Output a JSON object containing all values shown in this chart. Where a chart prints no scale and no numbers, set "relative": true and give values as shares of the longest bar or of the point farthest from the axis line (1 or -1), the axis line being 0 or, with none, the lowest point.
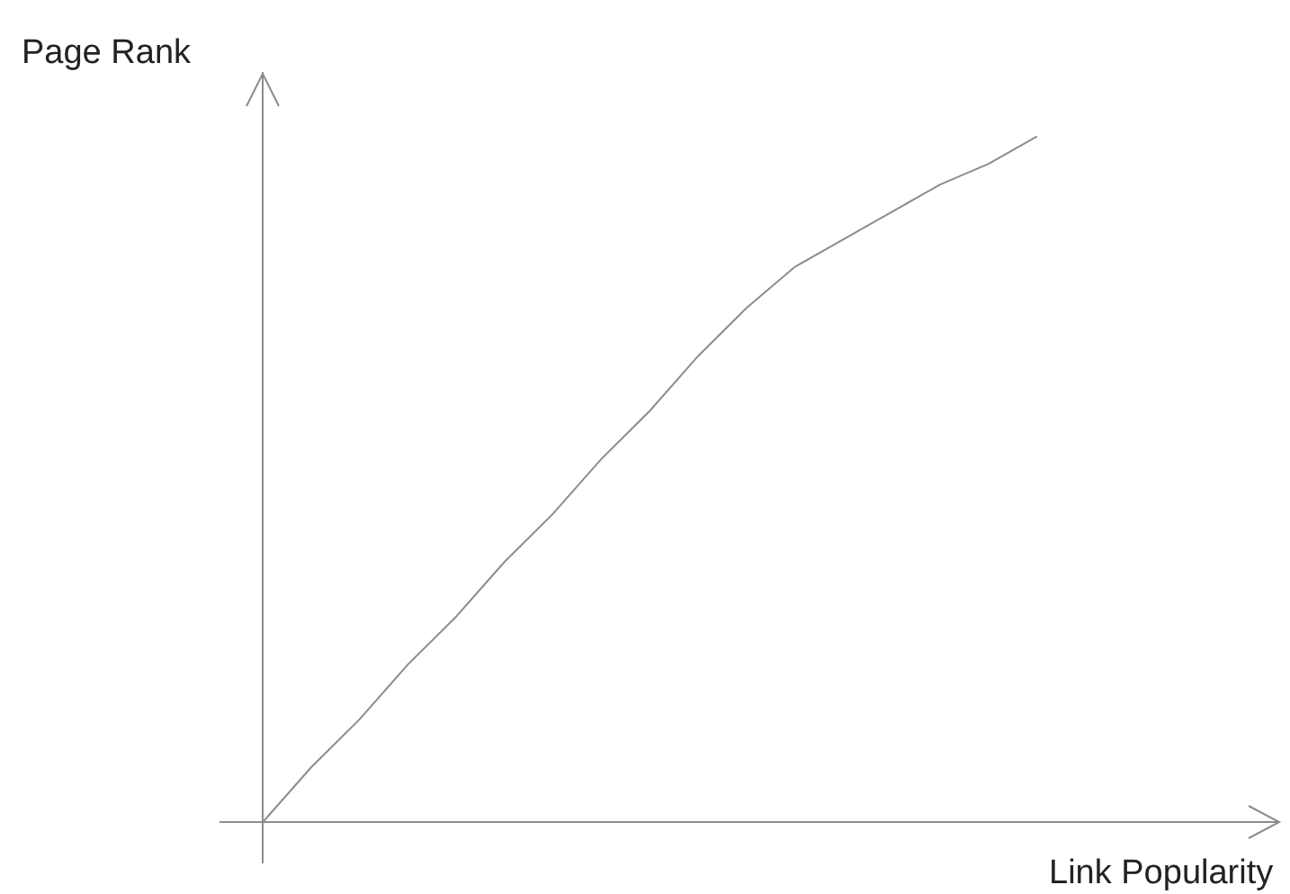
{
  "chart_data": {
    "type": "line",
    "xlabel": "Link Popularity",
    "ylabel": "Page Rank",
    "relative": true,
    "categories": [
      null,
      null,
      null,
      null,
      null,
      null,
      null,
      null,
      null,
      null,
      null,
      null,
      null,
      null,
      null,
      null,
      null
    ],
    "series": [
      {
        "color": "#8c8c8c",
        "values": [
          0,
          0.08,
          0.15,
          0.23,
          0.3,
          0.38,
          0.45,
          0.53,
          0.6,
          0.68,
          0.75,
          0.81,
          0.85,
          0.89,
          0.93,
          0.96,
          1
        ]
      }
    ],
    "marker": "none"
  }
}
